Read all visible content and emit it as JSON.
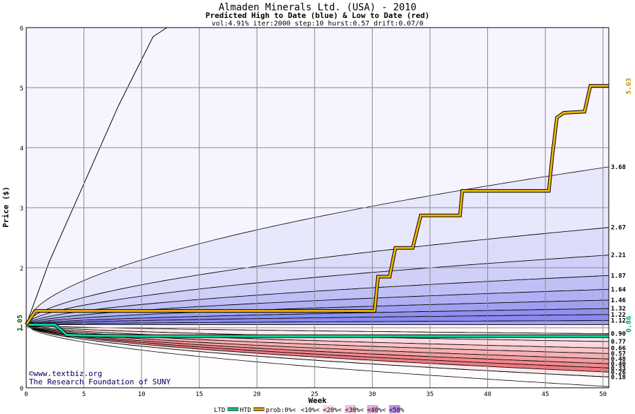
{
  "chart_data": {
    "type": "area",
    "title": "Almaden Minerals Ltd. (USA) - 2010",
    "subtitle": "Predicted High to Date (blue) &  Low to Date (red)",
    "params": "vol:4.91% iter:2000 step:10 hurst:0.57 drift:0.07/0",
    "xlabel": "Week",
    "ylabel": "Price ($)",
    "xlim": [
      0,
      50.5
    ],
    "ylim": [
      0,
      6
    ],
    "xticks": [
      0,
      5,
      10,
      15,
      20,
      25,
      30,
      35,
      40,
      45,
      50
    ],
    "yticks": [
      0,
      1,
      2,
      3,
      4,
      5,
      6
    ],
    "grid": true,
    "start_value": 1.05,
    "start_label": "1.05",
    "htd_last": 5.03,
    "htd_last_label": "5.03",
    "ltd_last": 0.86,
    "ltd_last_label": "0.86",
    "high_bands": [
      {
        "end": 3.68,
        "label": "3.68"
      },
      {
        "end": 2.67,
        "label": "2.67"
      },
      {
        "end": 2.21,
        "label": "2.21"
      },
      {
        "end": 1.87,
        "label": "1.87"
      },
      {
        "end": 1.64,
        "label": "1.64"
      },
      {
        "end": 1.46,
        "label": "1.46"
      },
      {
        "end": 1.32,
        "label": "1.32"
      },
      {
        "end": 1.22,
        "label": "1.22"
      },
      {
        "end": 1.12,
        "label": "1.12"
      }
    ],
    "low_bands": [
      {
        "end": 0.9,
        "label": "0.90"
      },
      {
        "end": 0.77,
        "label": "0.77"
      },
      {
        "end": 0.66,
        "label": "0.66"
      },
      {
        "end": 0.57,
        "label": "0.57"
      },
      {
        "end": 0.48,
        "label": "0.48"
      },
      {
        "end": 0.4,
        "label": "0.40"
      },
      {
        "end": 0.33,
        "label": "0.33"
      },
      {
        "end": 0.26,
        "label": "0.26"
      },
      {
        "end": 0.18,
        "label": "0.18"
      }
    ],
    "outer_high_curve": [
      [
        0,
        1.05
      ],
      [
        2,
        2.1
      ],
      [
        5,
        3.4
      ],
      [
        8,
        4.7
      ],
      [
        11,
        5.85
      ],
      [
        12.2,
        6.0
      ]
    ],
    "htd_series": {
      "name": "HTD",
      "points": [
        [
          0,
          1.05
        ],
        [
          0.8,
          1.28
        ],
        [
          30.2,
          1.28
        ],
        [
          30.5,
          1.85
        ],
        [
          31.5,
          1.85
        ],
        [
          32,
          2.33
        ],
        [
          33.5,
          2.33
        ],
        [
          34.2,
          2.87
        ],
        [
          37.6,
          2.87
        ],
        [
          37.8,
          3.28
        ],
        [
          45.3,
          3.28
        ],
        [
          45.6,
          3.85
        ],
        [
          46,
          4.5
        ],
        [
          46.6,
          4.58
        ],
        [
          48.4,
          4.6
        ],
        [
          48.9,
          5.03
        ],
        [
          50.5,
          5.03
        ]
      ]
    },
    "ltd_series": {
      "name": "LTD",
      "points": [
        [
          0,
          1.05
        ],
        [
          2.5,
          1.05
        ],
        [
          3.5,
          0.88
        ],
        [
          5,
          0.87
        ],
        [
          10,
          0.86
        ],
        [
          50.5,
          0.86
        ]
      ]
    },
    "legend": {
      "items": [
        {
          "label": "LTD",
          "color": "#00dca0"
        },
        {
          "label": "HTD",
          "color": "#f0b400"
        },
        {
          "label": "prob:0%<",
          "color": ""
        },
        {
          "label": "<10%<",
          "color": "#fdf5f5"
        },
        {
          "label": "<20%<",
          "color": "#f3d6e6"
        },
        {
          "label": "<30%<",
          "color": "#e6b4d2"
        },
        {
          "label": "<40%<",
          "color": "#d796c8"
        },
        {
          "label": "<50%",
          "color": "#a878e0"
        }
      ]
    },
    "credits": [
      "©www.textbiz.org",
      "The Research Foundation of SUNY"
    ]
  }
}
